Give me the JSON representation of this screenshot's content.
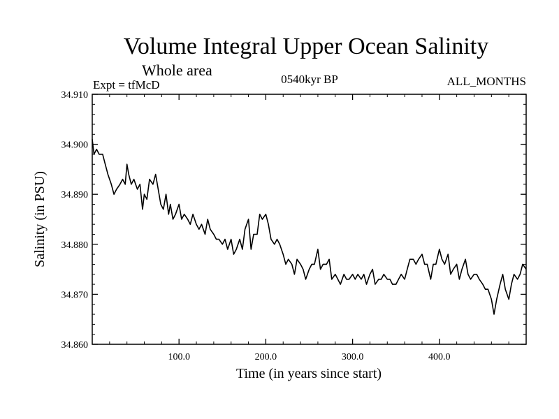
{
  "chart_data": {
    "type": "line",
    "title": "Volume Integral Upper Ocean Salinity",
    "subtitle": "Whole area",
    "top_left_label": "Expt = tfMcD",
    "top_center_label": "0540kyr BP",
    "top_right_label": "ALL_MONTHS",
    "xlabel": "Time (in years since start)",
    "ylabel": "Salinity (in PSU)",
    "xlim": [
      0,
      500
    ],
    "ylim": [
      34.86,
      34.91
    ],
    "x_ticks": [
      100,
      200,
      300,
      400
    ],
    "x_tick_labels": [
      "100.0",
      "200.0",
      "300.0",
      "400.0"
    ],
    "y_ticks": [
      34.86,
      34.87,
      34.88,
      34.89,
      34.9,
      34.91
    ],
    "y_tick_labels": [
      "34.860",
      "34.870",
      "34.880",
      "34.890",
      "34.900",
      "34.910"
    ],
    "grid": false,
    "legend": "none",
    "line_color": "#000000",
    "series": [
      {
        "x": [
          0,
          2,
          5,
          8,
          12,
          15,
          18,
          22,
          25,
          28,
          32,
          35,
          38,
          40,
          42,
          45,
          48,
          52,
          55,
          58,
          60,
          63,
          66,
          70,
          73,
          76,
          79,
          82,
          85,
          88,
          90,
          93,
          96,
          100,
          103,
          106,
          110,
          113,
          116,
          120,
          123,
          126,
          130,
          133,
          136,
          140,
          143,
          146,
          150,
          153,
          156,
          160,
          163,
          166,
          170,
          173,
          176,
          180,
          183,
          186,
          190,
          193,
          196,
          200,
          203,
          206,
          210,
          213,
          216,
          220,
          223,
          226,
          230,
          233,
          236,
          240,
          243,
          246,
          250,
          253,
          256,
          260,
          263,
          266,
          270,
          273,
          276,
          280,
          283,
          286,
          290,
          293,
          296,
          300,
          303,
          306,
          310,
          313,
          316,
          320,
          323,
          326,
          330,
          333,
          336,
          340,
          343,
          346,
          350,
          353,
          356,
          360,
          363,
          366,
          370,
          373,
          376,
          380,
          383,
          386,
          390,
          393,
          396,
          400,
          403,
          406,
          410,
          413,
          416,
          420,
          423,
          426,
          430,
          433,
          436,
          440,
          443,
          446,
          450,
          453,
          456,
          460,
          463,
          466,
          470,
          473,
          476,
          480,
          483,
          486,
          490,
          493,
          496,
          500
        ],
        "y": [
          34.901,
          34.898,
          34.899,
          34.898,
          34.898,
          34.896,
          34.894,
          34.892,
          34.89,
          34.891,
          34.892,
          34.893,
          34.892,
          34.896,
          34.894,
          34.892,
          34.893,
          34.891,
          34.892,
          34.887,
          34.89,
          34.889,
          34.893,
          34.892,
          34.894,
          34.891,
          34.888,
          34.887,
          34.89,
          34.886,
          34.888,
          34.885,
          34.886,
          34.888,
          34.885,
          34.886,
          34.885,
          34.884,
          34.886,
          34.884,
          34.883,
          34.884,
          34.882,
          34.885,
          34.883,
          34.882,
          34.881,
          34.881,
          34.88,
          34.881,
          34.879,
          34.881,
          34.878,
          34.879,
          34.881,
          34.879,
          34.883,
          34.885,
          34.879,
          34.882,
          34.882,
          34.886,
          34.885,
          34.886,
          34.884,
          34.881,
          34.88,
          34.881,
          34.88,
          34.878,
          34.876,
          34.877,
          34.876,
          34.874,
          34.877,
          34.876,
          34.875,
          34.873,
          34.875,
          34.876,
          34.876,
          34.879,
          34.875,
          34.876,
          34.876,
          34.877,
          34.873,
          34.874,
          34.873,
          34.872,
          34.874,
          34.873,
          34.873,
          34.874,
          34.873,
          34.874,
          34.873,
          34.874,
          34.872,
          34.874,
          34.875,
          34.872,
          34.873,
          34.873,
          34.874,
          34.873,
          34.873,
          34.872,
          34.872,
          34.873,
          34.874,
          34.873,
          34.875,
          34.877,
          34.877,
          34.876,
          34.877,
          34.878,
          34.876,
          34.876,
          34.873,
          34.876,
          34.876,
          34.879,
          34.877,
          34.876,
          34.878,
          34.874,
          34.875,
          34.876,
          34.873,
          34.875,
          34.877,
          34.874,
          34.873,
          34.874,
          34.874,
          34.873,
          34.872,
          34.871,
          34.871,
          34.869,
          34.866,
          34.869,
          34.872,
          34.874,
          34.871,
          34.869,
          34.872,
          34.874,
          34.873,
          34.874,
          34.876,
          34.875
        ]
      }
    ]
  }
}
